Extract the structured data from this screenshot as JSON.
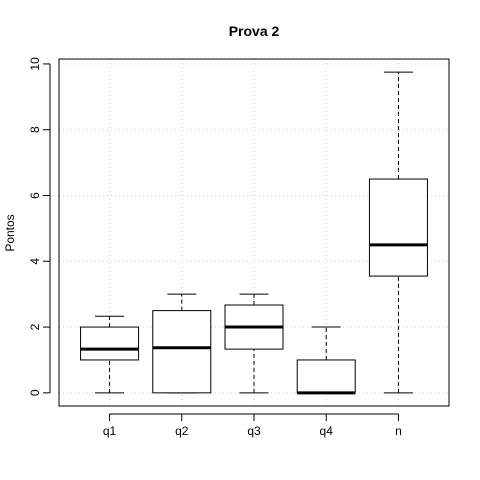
{
  "chart_data": {
    "type": "boxplot",
    "title": "Prova 2",
    "xlabel": "",
    "ylabel": "Pontos",
    "ylim": [
      -0.4,
      10.15
    ],
    "yticks": [
      0,
      2,
      4,
      6,
      8,
      10
    ],
    "grid": true,
    "categories": [
      "q1",
      "q2",
      "q3",
      "q4",
      "n"
    ],
    "boxes": [
      {
        "name": "q1",
        "min": 0,
        "q1": 1.0,
        "median": 1.33,
        "q3": 2.0,
        "max": 2.33
      },
      {
        "name": "q2",
        "min": 0,
        "q1": 0.0,
        "median": 1.37,
        "q3": 2.5,
        "max": 3.0
      },
      {
        "name": "q3",
        "min": 0,
        "q1": 1.33,
        "median": 2.0,
        "q3": 2.67,
        "max": 3.0
      },
      {
        "name": "q4",
        "min": 0,
        "q1": 0.0,
        "median": 0.0,
        "q3": 1.0,
        "max": 2.0
      },
      {
        "name": "n",
        "min": 0,
        "q1": 3.55,
        "median": 4.5,
        "q3": 6.5,
        "max": 9.75
      }
    ]
  }
}
